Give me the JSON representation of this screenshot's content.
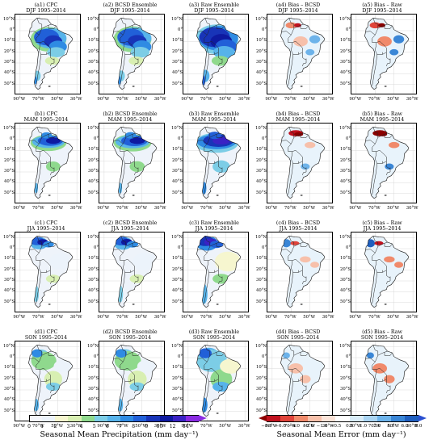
{
  "panels": [
    {
      "id": "a1",
      "line1": "(a1) CPC",
      "line2": "DJF 1995–2014",
      "kind": "precip",
      "season": "DJF"
    },
    {
      "id": "a2",
      "line1": "(a2) BCSD Ensemble",
      "line2": "DJF 1995–2014",
      "kind": "precip",
      "season": "DJF"
    },
    {
      "id": "a3",
      "line1": "(a3) Raw Ensemble",
      "line2": "DJF 1995–2014",
      "kind": "precip",
      "season": "DJF"
    },
    {
      "id": "a4",
      "line1": "(a4) Bias – BCSD",
      "line2": "DJF 1995–2014",
      "kind": "bias",
      "season": "DJF"
    },
    {
      "id": "a5",
      "line1": "(a5) Bias – Raw",
      "line2": "DJF 1995–2014",
      "kind": "bias",
      "season": "DJF"
    },
    {
      "id": "b1",
      "line1": "(b1) CPC",
      "line2": "MAM 1995–2014",
      "kind": "precip",
      "season": "MAM"
    },
    {
      "id": "b2",
      "line1": "(b2) BCSD Ensemble",
      "line2": "MAM 1995–2014",
      "kind": "precip",
      "season": "MAM"
    },
    {
      "id": "b3",
      "line1": "(b3) Raw Ensemble",
      "line2": "MAM 1995–2014",
      "kind": "precip",
      "season": "MAM"
    },
    {
      "id": "b4",
      "line1": "(b4) Bias – BCSD",
      "line2": "MAM 1995–2014",
      "kind": "bias",
      "season": "MAM"
    },
    {
      "id": "b5",
      "line1": "(b5) Bias – Raw",
      "line2": "MAM 1995–2014",
      "kind": "bias",
      "season": "MAM"
    },
    {
      "id": "c1",
      "line1": "(c1) CPC",
      "line2": "JJA 1995–2014",
      "kind": "precip",
      "season": "JJA"
    },
    {
      "id": "c2",
      "line1": "(c2) BCSD Ensemble",
      "line2": "JJA 1995–2014",
      "kind": "precip",
      "season": "JJA"
    },
    {
      "id": "c3",
      "line1": "(c3) Raw Ensemble",
      "line2": "JJA 1995–2014",
      "kind": "precip",
      "season": "JJA"
    },
    {
      "id": "c4",
      "line1": "(c4) Bias – BCSD",
      "line2": "JJA 1995–2014",
      "kind": "bias",
      "season": "JJA"
    },
    {
      "id": "c5",
      "line1": "(c5) Bias – Raw",
      "line2": "JJA 1995–2014",
      "kind": "bias",
      "season": "JJA"
    },
    {
      "id": "d1",
      "line1": "(d1) CPC",
      "line2": "SON 1995–2014",
      "kind": "precip",
      "season": "SON"
    },
    {
      "id": "d2",
      "line1": "(d2) BCSD Ensemble",
      "line2": "SON 1995–2014",
      "kind": "precip",
      "season": "SON"
    },
    {
      "id": "d3",
      "line1": "(d3) Raw Ensemble",
      "line2": "SON 1995–2014",
      "kind": "precip",
      "season": "SON"
    },
    {
      "id": "d4",
      "line1": "(d4) Bias – BCSD",
      "line2": "SON 1995–2014",
      "kind": "bias",
      "season": "SON"
    },
    {
      "id": "d5",
      "line1": "(d5) Bias – Raw",
      "line2": "SON 1995–2014",
      "kind": "bias",
      "season": "SON"
    }
  ],
  "lat_labels": [
    "10°N",
    "0°",
    "10°S",
    "20°S",
    "30°S",
    "40°S",
    "50°S"
  ],
  "lon_labels": [
    "90°W",
    "70°W",
    "50°W",
    "30°W"
  ],
  "precip_colorbar": {
    "label": "Seasonal Mean Precipitation (mm day⁻¹)",
    "ticks": [
      "0",
      "1",
      "2",
      "3",
      "4",
      "5",
      "6",
      "7",
      "8",
      "9",
      "10",
      "12",
      "14"
    ],
    "colors": [
      "#f4f6fb",
      "#ecf3fb",
      "#f6f6cf",
      "#d8efb2",
      "#8fd98d",
      "#7ccde6",
      "#57b3ea",
      "#2f8be3",
      "#2160d8",
      "#1834b8",
      "#0e1aa0",
      "#3a22c4",
      "#8a2be2"
    ]
  },
  "bias_colorbar": {
    "label": "Seasonal Mean Error (mm day⁻¹)",
    "ticks": [
      "−8.0",
      "−6.0",
      "−4.0",
      "−2.0",
      "−1.0",
      "−0.5",
      "0.5",
      "1.0",
      "2.0",
      "4.0",
      "6.0",
      "8.0"
    ],
    "colors": [
      "#8b0000",
      "#c1121f",
      "#e0443b",
      "#f08a6b",
      "#f7c0aa",
      "#fbe3d8",
      "#ffffff",
      "#d8ecf8",
      "#a9d4f2",
      "#6db3ea",
      "#3a86d6",
      "#1f5fbf",
      "#2a4fd0"
    ]
  }
}
